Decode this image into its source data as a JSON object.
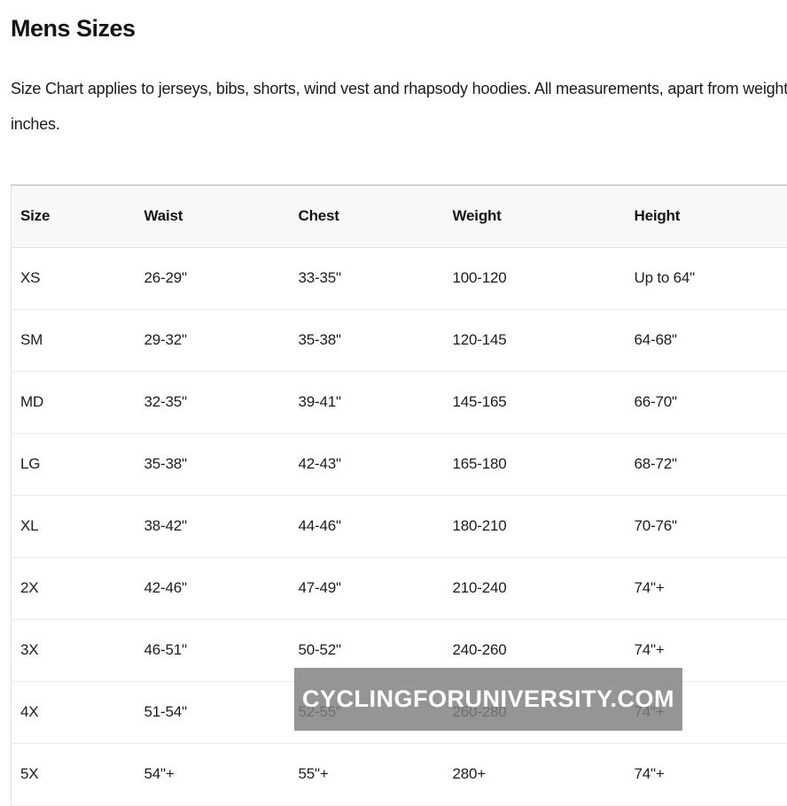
{
  "page": {
    "title": "Mens Sizes",
    "description_line1": "Size Chart applies to jerseys, bibs, shorts, wind vest and rhapsody hoodies. All measurements, apart from weight, are listed in",
    "description_line2": "inches."
  },
  "size_table": {
    "columns": [
      "Size",
      "Waist",
      "Chest",
      "Weight",
      "Height"
    ],
    "rows": [
      [
        "XS",
        "26-29\"",
        "33-35\"",
        "100-120",
        "Up to 64\""
      ],
      [
        "SM",
        "29-32\"",
        "35-38\"",
        "120-145",
        "64-68\""
      ],
      [
        "MD",
        "32-35\"",
        "39-41\"",
        "145-165",
        "66-70\""
      ],
      [
        "LG",
        "35-38\"",
        "42-43\"",
        "165-180",
        "68-72\""
      ],
      [
        "XL",
        "38-42\"",
        "44-46\"",
        "180-210",
        "70-76\""
      ],
      [
        "2X",
        "42-46\"",
        "47-49\"",
        "210-240",
        "74\"+"
      ],
      [
        "3X",
        "46-51\"",
        "50-52\"",
        "240-260",
        "74\"+"
      ],
      [
        "4X",
        "51-54\"",
        "52-55\"",
        "260-280",
        "74\"+"
      ],
      [
        "5X",
        "54\"+",
        "55\"+",
        "280+",
        "74\"+"
      ]
    ]
  },
  "watermark": {
    "text": "CYCLINGFORUNIVERSITY.COM",
    "bg_color": "#7f7f7f",
    "text_color": "#ffffff"
  },
  "colors": {
    "header_bg": "#f8f8f8",
    "table_top_border": "#d4d4d4",
    "row_border": "#ebebeb",
    "text": "#1b1b1b"
  }
}
